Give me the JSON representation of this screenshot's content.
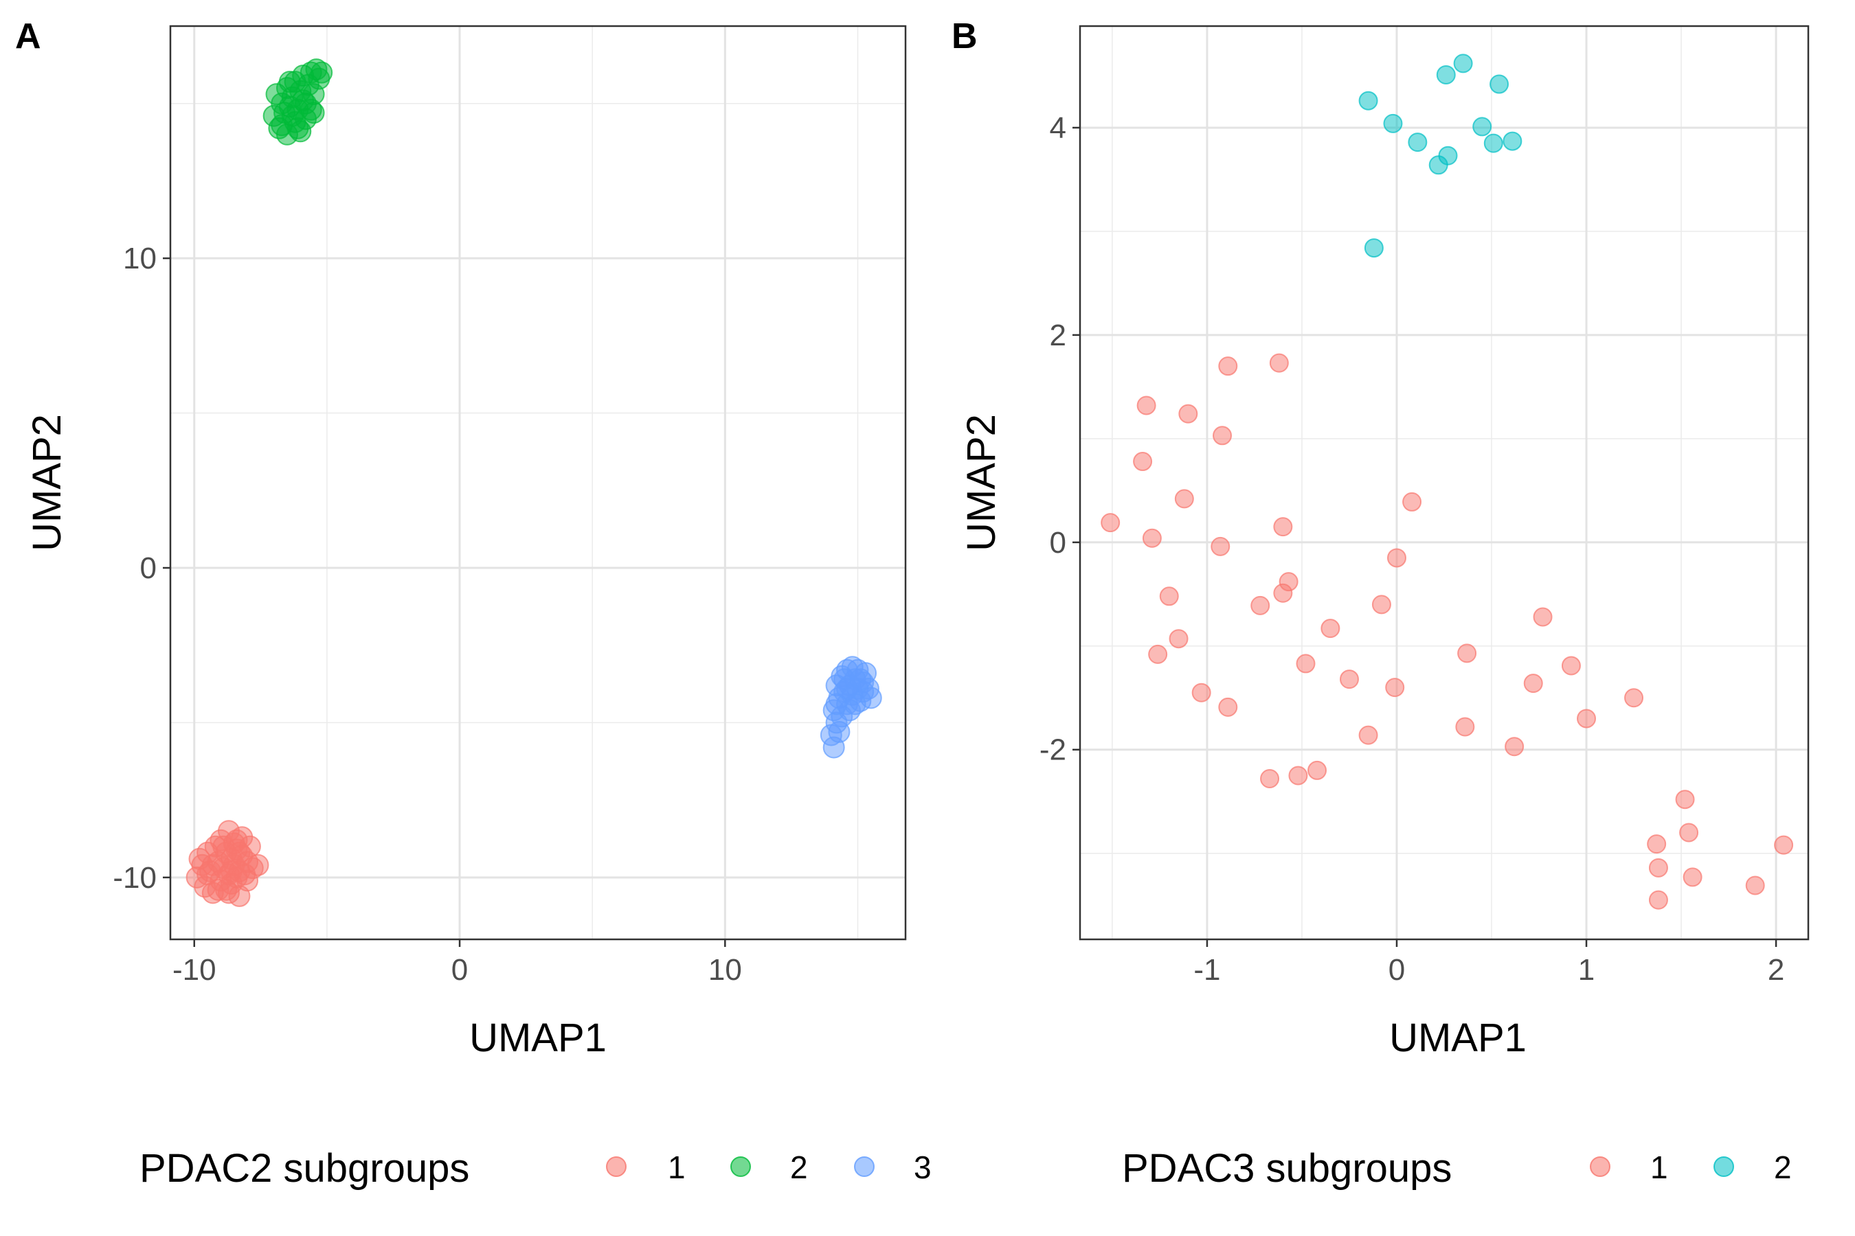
{
  "chart_data": [
    {
      "type": "scatter",
      "panel_label": "A",
      "xlabel": "UMAP1",
      "ylabel": "UMAP2",
      "xlim": [
        -10.9,
        16.8
      ],
      "ylim": [
        -12.0,
        17.5
      ],
      "x_ticks": [
        -10,
        0,
        10
      ],
      "x_tick_labels": [
        "-10",
        "0",
        "10"
      ],
      "y_ticks": [
        -10,
        0,
        10
      ],
      "y_tick_labels": [
        "-10",
        "0",
        "10"
      ],
      "grid": true,
      "legend": {
        "title": "PDAC2 subgroups",
        "position": "bottom"
      },
      "series": [
        {
          "name": "1",
          "color": "#F8766D",
          "points": [
            [
              -9.9,
              -10.0
            ],
            [
              -9.7,
              -9.6
            ],
            [
              -9.6,
              -10.3
            ],
            [
              -9.5,
              -9.2
            ],
            [
              -9.4,
              -9.8
            ],
            [
              -9.3,
              -10.5
            ],
            [
              -9.2,
              -9.0
            ],
            [
              -9.1,
              -9.5
            ],
            [
              -9.0,
              -10.1
            ],
            [
              -9.0,
              -8.8
            ],
            [
              -8.9,
              -9.7
            ],
            [
              -8.8,
              -10.4
            ],
            [
              -8.8,
              -9.2
            ],
            [
              -8.7,
              -8.5
            ],
            [
              -8.7,
              -9.9
            ],
            [
              -8.6,
              -9.4
            ],
            [
              -8.6,
              -10.2
            ],
            [
              -8.5,
              -8.9
            ],
            [
              -8.5,
              -9.6
            ],
            [
              -8.4,
              -10.0
            ],
            [
              -8.4,
              -9.1
            ],
            [
              -8.3,
              -9.8
            ],
            [
              -8.3,
              -10.6
            ],
            [
              -8.2,
              -9.3
            ],
            [
              -8.2,
              -8.7
            ],
            [
              -8.1,
              -9.9
            ],
            [
              -8.0,
              -9.5
            ],
            [
              -7.9,
              -9.0
            ],
            [
              -7.8,
              -9.7
            ],
            [
              -7.6,
              -9.6
            ],
            [
              -9.8,
              -9.4
            ],
            [
              -9.3,
              -9.6
            ],
            [
              -8.9,
              -9.0
            ],
            [
              -8.6,
              -9.8
            ],
            [
              -8.3,
              -9.2
            ],
            [
              -8.0,
              -10.1
            ],
            [
              -9.1,
              -10.4
            ],
            [
              -8.7,
              -10.5
            ],
            [
              -8.4,
              -8.8
            ],
            [
              -9.5,
              -9.9
            ]
          ]
        },
        {
          "name": "2",
          "color": "#00BA38",
          "points": [
            [
              -7.0,
              14.6
            ],
            [
              -6.9,
              15.3
            ],
            [
              -6.8,
              14.2
            ],
            [
              -6.7,
              15.0
            ],
            [
              -6.6,
              14.7
            ],
            [
              -6.5,
              15.5
            ],
            [
              -6.5,
              14.0
            ],
            [
              -6.4,
              14.9
            ],
            [
              -6.3,
              15.2
            ],
            [
              -6.2,
              14.4
            ],
            [
              -6.2,
              15.7
            ],
            [
              -6.1,
              14.8
            ],
            [
              -6.0,
              15.4
            ],
            [
              -6.0,
              14.1
            ],
            [
              -5.9,
              15.9
            ],
            [
              -5.8,
              15.0
            ],
            [
              -5.8,
              14.5
            ],
            [
              -5.7,
              15.6
            ],
            [
              -5.6,
              16.0
            ],
            [
              -5.5,
              15.3
            ],
            [
              -5.5,
              14.7
            ],
            [
              -5.4,
              16.1
            ],
            [
              -5.3,
              15.8
            ],
            [
              -5.2,
              16.0
            ],
            [
              -6.7,
              14.3
            ],
            [
              -6.4,
              15.7
            ],
            [
              -6.1,
              14.2
            ],
            [
              -5.9,
              15.1
            ],
            [
              -5.6,
              14.8
            ],
            [
              -6.3,
              14.6
            ]
          ]
        },
        {
          "name": "3",
          "color": "#619CFF",
          "points": [
            [
              14.1,
              -5.8
            ],
            [
              14.0,
              -5.4
            ],
            [
              14.2,
              -5.0
            ],
            [
              14.1,
              -4.6
            ],
            [
              14.3,
              -4.2
            ],
            [
              14.2,
              -3.8
            ],
            [
              14.4,
              -3.5
            ],
            [
              14.5,
              -4.0
            ],
            [
              14.4,
              -4.8
            ],
            [
              14.3,
              -5.3
            ],
            [
              14.6,
              -3.3
            ],
            [
              14.6,
              -4.4
            ],
            [
              14.7,
              -3.8
            ],
            [
              14.8,
              -3.2
            ],
            [
              14.8,
              -4.1
            ],
            [
              14.9,
              -3.6
            ],
            [
              15.0,
              -3.9
            ],
            [
              15.0,
              -3.3
            ],
            [
              15.1,
              -4.3
            ],
            [
              15.2,
              -3.7
            ],
            [
              15.2,
              -4.0
            ],
            [
              15.3,
              -3.4
            ],
            [
              15.4,
              -3.9
            ],
            [
              15.5,
              -4.2
            ],
            [
              14.5,
              -3.6
            ],
            [
              14.7,
              -4.6
            ],
            [
              14.9,
              -4.4
            ],
            [
              14.2,
              -4.4
            ],
            [
              14.6,
              -3.9
            ],
            [
              15.1,
              -3.6
            ]
          ]
        }
      ]
    },
    {
      "type": "scatter",
      "panel_label": "B",
      "xlabel": "UMAP1",
      "ylabel": "UMAP2",
      "xlim": [
        -1.67,
        2.17
      ],
      "ylim": [
        -3.83,
        4.98
      ],
      "x_ticks": [
        -1,
        0,
        1,
        2
      ],
      "x_tick_labels": [
        "-1",
        "0",
        "1",
        "2"
      ],
      "y_ticks": [
        -2,
        0,
        2,
        4
      ],
      "y_tick_labels": [
        "-2",
        "0",
        "2",
        "4"
      ],
      "grid": true,
      "legend": {
        "title": "PDAC3 subgroups",
        "position": "bottom"
      },
      "series": [
        {
          "name": "1",
          "color": "#F8766D",
          "points": [
            [
              -1.51,
              0.19
            ],
            [
              -1.32,
              1.32
            ],
            [
              -1.34,
              0.78
            ],
            [
              -1.29,
              0.04
            ],
            [
              -1.2,
              -0.52
            ],
            [
              -1.26,
              -1.08
            ],
            [
              -1.15,
              -0.93
            ],
            [
              -1.1,
              1.24
            ],
            [
              -1.12,
              0.42
            ],
            [
              -1.03,
              -1.45
            ],
            [
              -0.89,
              1.7
            ],
            [
              -0.92,
              1.03
            ],
            [
              -0.93,
              -0.04
            ],
            [
              -0.89,
              -1.59
            ],
            [
              -0.72,
              -0.61
            ],
            [
              -0.67,
              -2.28
            ],
            [
              -0.62,
              1.73
            ],
            [
              -0.6,
              0.15
            ],
            [
              -0.6,
              -0.49
            ],
            [
              -0.57,
              -0.38
            ],
            [
              -0.52,
              -2.25
            ],
            [
              -0.48,
              -1.17
            ],
            [
              -0.42,
              -2.2
            ],
            [
              -0.35,
              -0.83
            ],
            [
              -0.25,
              -1.32
            ],
            [
              -0.15,
              -1.86
            ],
            [
              -0.08,
              -0.6
            ],
            [
              -0.01,
              -1.4
            ],
            [
              0.0,
              -0.15
            ],
            [
              0.08,
              0.39
            ],
            [
              0.36,
              -1.78
            ],
            [
              0.37,
              -1.07
            ],
            [
              0.62,
              -1.97
            ],
            [
              0.72,
              -1.36
            ],
            [
              0.77,
              -0.72
            ],
            [
              0.92,
              -1.19
            ],
            [
              1.0,
              -1.7
            ],
            [
              1.25,
              -1.5
            ],
            [
              1.37,
              -2.91
            ],
            [
              1.38,
              -3.14
            ],
            [
              1.38,
              -3.45
            ],
            [
              1.52,
              -2.48
            ],
            [
              1.54,
              -2.8
            ],
            [
              1.56,
              -3.23
            ],
            [
              1.89,
              -3.31
            ],
            [
              2.04,
              -2.92
            ]
          ]
        },
        {
          "name": "2",
          "color": "#00BFC4",
          "points": [
            [
              -0.15,
              4.26
            ],
            [
              -0.12,
              2.84
            ],
            [
              -0.02,
              4.04
            ],
            [
              0.11,
              3.86
            ],
            [
              0.22,
              3.64
            ],
            [
              0.26,
              4.51
            ],
            [
              0.27,
              3.73
            ],
            [
              0.35,
              4.62
            ],
            [
              0.45,
              4.01
            ],
            [
              0.51,
              3.85
            ],
            [
              0.54,
              4.42
            ],
            [
              0.61,
              3.87
            ]
          ]
        }
      ]
    }
  ]
}
